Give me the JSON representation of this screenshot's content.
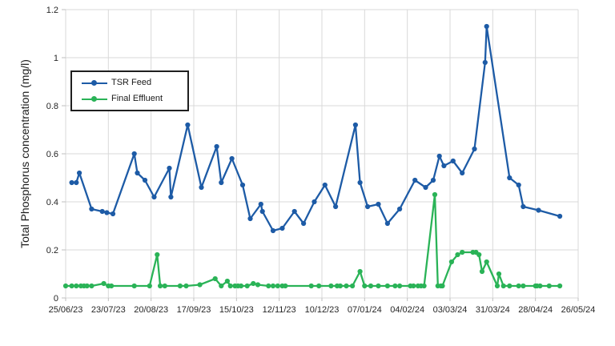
{
  "chart": {
    "y_axis_title": "Total Phosphorus concentration (mg/l)"
  },
  "chart_data": {
    "type": "line",
    "title": "",
    "xlabel": "",
    "ylabel": "Total Phosphorus concentration (mg/l)",
    "grid": true,
    "legend_position": "upper-left-inside",
    "ylim": [
      0,
      1.2
    ],
    "y_ticks": [
      0,
      0.2,
      0.4,
      0.6,
      0.8,
      1,
      1.2
    ],
    "y_tick_labels": [
      "0",
      "0.2",
      "0.4",
      "0.6",
      "0.8",
      "1",
      "1.2"
    ],
    "x_axis_unit": "days since 25/06/23",
    "x_range_days": [
      0,
      336
    ],
    "x_tick_days": [
      0,
      28,
      56,
      84,
      112,
      140,
      168,
      196,
      224,
      252,
      280,
      308,
      336
    ],
    "x_tick_labels": [
      "25/06/23",
      "23/07/23",
      "20/08/23",
      "17/09/23",
      "15/10/23",
      "12/11/23",
      "10/12/23",
      "07/01/24",
      "04/02/24",
      "03/03/24",
      "31/03/24",
      "28/04/24",
      "26/05/24"
    ],
    "series": [
      {
        "name": "TSR Feed",
        "color": "#1d5ba6",
        "points": [
          [
            4,
            0.48
          ],
          [
            7,
            0.48
          ],
          [
            9,
            0.52
          ],
          [
            17,
            0.37
          ],
          [
            24,
            0.36
          ],
          [
            27,
            0.355
          ],
          [
            31,
            0.35
          ],
          [
            45,
            0.6
          ],
          [
            47,
            0.52
          ],
          [
            52,
            0.49
          ],
          [
            58,
            0.42
          ],
          [
            68,
            0.54
          ],
          [
            69,
            0.42
          ],
          [
            80,
            0.72
          ],
          [
            89,
            0.46
          ],
          [
            99,
            0.63
          ],
          [
            102,
            0.48
          ],
          [
            109,
            0.58
          ],
          [
            116,
            0.47
          ],
          [
            121,
            0.33
          ],
          [
            128,
            0.39
          ],
          [
            129,
            0.36
          ],
          [
            136,
            0.28
          ],
          [
            142,
            0.29
          ],
          [
            150,
            0.36
          ],
          [
            156,
            0.31
          ],
          [
            163,
            0.4
          ],
          [
            170,
            0.47
          ],
          [
            177,
            0.38
          ],
          [
            190,
            0.72
          ],
          [
            193,
            0.48
          ],
          [
            198,
            0.38
          ],
          [
            205,
            0.39
          ],
          [
            211,
            0.31
          ],
          [
            219,
            0.37
          ],
          [
            229,
            0.49
          ],
          [
            236,
            0.46
          ],
          [
            241,
            0.49
          ],
          [
            245,
            0.59
          ],
          [
            248,
            0.55
          ],
          [
            254,
            0.57
          ],
          [
            260,
            0.52
          ],
          [
            268,
            0.62
          ],
          [
            275,
            0.98
          ],
          [
            276,
            1.13
          ],
          [
            291,
            0.5
          ],
          [
            297,
            0.47
          ],
          [
            300,
            0.38
          ],
          [
            310,
            0.365
          ],
          [
            324,
            0.34
          ]
        ]
      },
      {
        "name": "Final Effluent",
        "color": "#2ab357",
        "points": [
          [
            0,
            0.05
          ],
          [
            4,
            0.05
          ],
          [
            7,
            0.05
          ],
          [
            10,
            0.05
          ],
          [
            12,
            0.05
          ],
          [
            14,
            0.05
          ],
          [
            17,
            0.05
          ],
          [
            25,
            0.06
          ],
          [
            28,
            0.05
          ],
          [
            30,
            0.05
          ],
          [
            45,
            0.05
          ],
          [
            55,
            0.05
          ],
          [
            60,
            0.18
          ],
          [
            62,
            0.05
          ],
          [
            65,
            0.05
          ],
          [
            75,
            0.05
          ],
          [
            79,
            0.05
          ],
          [
            88,
            0.055
          ],
          [
            98,
            0.08
          ],
          [
            102,
            0.05
          ],
          [
            106,
            0.07
          ],
          [
            108,
            0.05
          ],
          [
            111,
            0.05
          ],
          [
            113,
            0.05
          ],
          [
            115,
            0.05
          ],
          [
            119,
            0.05
          ],
          [
            123,
            0.06
          ],
          [
            126,
            0.055
          ],
          [
            133,
            0.05
          ],
          [
            136,
            0.05
          ],
          [
            139,
            0.05
          ],
          [
            142,
            0.05
          ],
          [
            144,
            0.05
          ],
          [
            161,
            0.05
          ],
          [
            166,
            0.05
          ],
          [
            174,
            0.05
          ],
          [
            178,
            0.05
          ],
          [
            180,
            0.05
          ],
          [
            184,
            0.05
          ],
          [
            188,
            0.05
          ],
          [
            193,
            0.11
          ],
          [
            196,
            0.05
          ],
          [
            200,
            0.05
          ],
          [
            205,
            0.05
          ],
          [
            211,
            0.05
          ],
          [
            216,
            0.05
          ],
          [
            219,
            0.05
          ],
          [
            226,
            0.05
          ],
          [
            228,
            0.05
          ],
          [
            231,
            0.05
          ],
          [
            233,
            0.05
          ],
          [
            235,
            0.05
          ],
          [
            242,
            0.43
          ],
          [
            244,
            0.05
          ],
          [
            246,
            0.05
          ],
          [
            247,
            0.05
          ],
          [
            253,
            0.15
          ],
          [
            257,
            0.18
          ],
          [
            260,
            0.19
          ],
          [
            267,
            0.19
          ],
          [
            269,
            0.19
          ],
          [
            271,
            0.18
          ],
          [
            273,
            0.11
          ],
          [
            276,
            0.15
          ],
          [
            283,
            0.05
          ],
          [
            284,
            0.1
          ],
          [
            287,
            0.05
          ],
          [
            291,
            0.05
          ],
          [
            297,
            0.05
          ],
          [
            300,
            0.05
          ],
          [
            308,
            0.05
          ],
          [
            309,
            0.05
          ],
          [
            311,
            0.05
          ],
          [
            317,
            0.05
          ],
          [
            324,
            0.05
          ]
        ]
      }
    ],
    "style": {
      "gridline_color": "#d9d9d9",
      "tick_mark_color": "#bfbfbf",
      "tick_label_color": "#262626",
      "axis_title_color": "#1a1a1a",
      "background": "#ffffff"
    }
  }
}
